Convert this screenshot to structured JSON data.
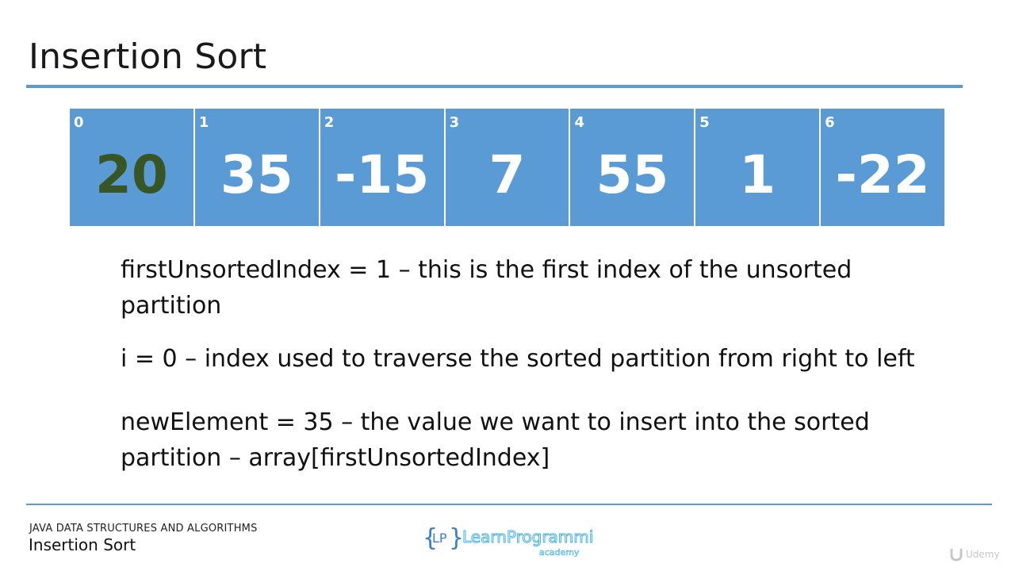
{
  "slide": {
    "title": "Insertion Sort"
  },
  "array": {
    "cells": [
      {
        "index": "0",
        "value": "20",
        "sorted": true
      },
      {
        "index": "1",
        "value": "35",
        "sorted": false
      },
      {
        "index": "2",
        "value": "-15",
        "sorted": false
      },
      {
        "index": "3",
        "value": "7",
        "sorted": false
      },
      {
        "index": "4",
        "value": "55",
        "sorted": false
      },
      {
        "index": "5",
        "value": "1",
        "sorted": false
      },
      {
        "index": "6",
        "value": "-22",
        "sorted": false
      }
    ]
  },
  "notes": {
    "first_unsorted": "firstUnsortedIndex = 1 – this is the first index of the unsorted partition",
    "i_var": "i = 0 – index used to traverse the sorted partition from right to left",
    "new_element": "newElement = 35 – the value we want to insert into the sorted partition – array[firstUnsortedIndex]"
  },
  "footer": {
    "course": "JAVA DATA STRUCTURES AND ALGORITHMS",
    "title": "Insertion Sort",
    "logo_text": "LearnProgramming",
    "logo_sub": "academy",
    "udemy": "Udemy"
  },
  "colors": {
    "accent": "#5b9bd5",
    "sorted_value": "#375623"
  }
}
